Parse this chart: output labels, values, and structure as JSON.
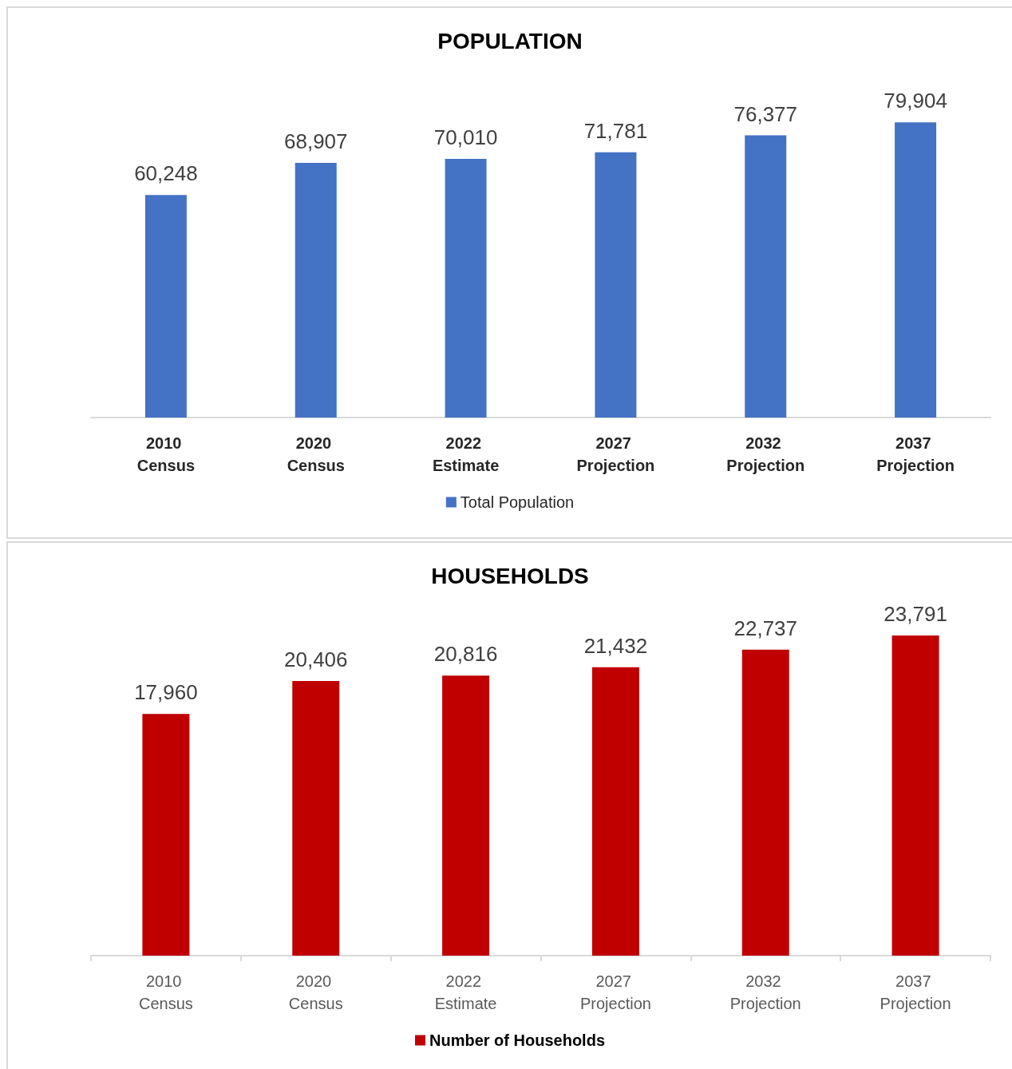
{
  "chart_data": [
    {
      "type": "bar",
      "title": "POPULATION",
      "categories": [
        "2010 Census",
        "2020 Census",
        "2022 Estimate",
        "2027 Projection",
        "2032 Projection",
        "2037 Projection"
      ],
      "series": [
        {
          "name": "Total Population",
          "color": "#4472c4",
          "values": [
            60248,
            68907,
            70010,
            71781,
            76377,
            79904
          ],
          "value_labels": [
            "60,248",
            "68,907",
            "70,010",
            "71,781",
            "76,377",
            "79,904"
          ]
        }
      ],
      "legend": "bottom"
    },
    {
      "type": "bar",
      "title": "HOUSEHOLDS",
      "categories": [
        "2010 Census",
        "2020 Census",
        "2022 Estimate",
        "2027 Projection",
        "2032 Projection",
        "2037 Projection"
      ],
      "series": [
        {
          "name": "Number of Households",
          "color": "#c00000",
          "values": [
            17960,
            20406,
            20816,
            21432,
            22737,
            23791
          ],
          "value_labels": [
            "17,960",
            "20,406",
            "20,816",
            "21,432",
            "22,737",
            "23,791"
          ]
        }
      ],
      "legend": "bottom"
    }
  ]
}
